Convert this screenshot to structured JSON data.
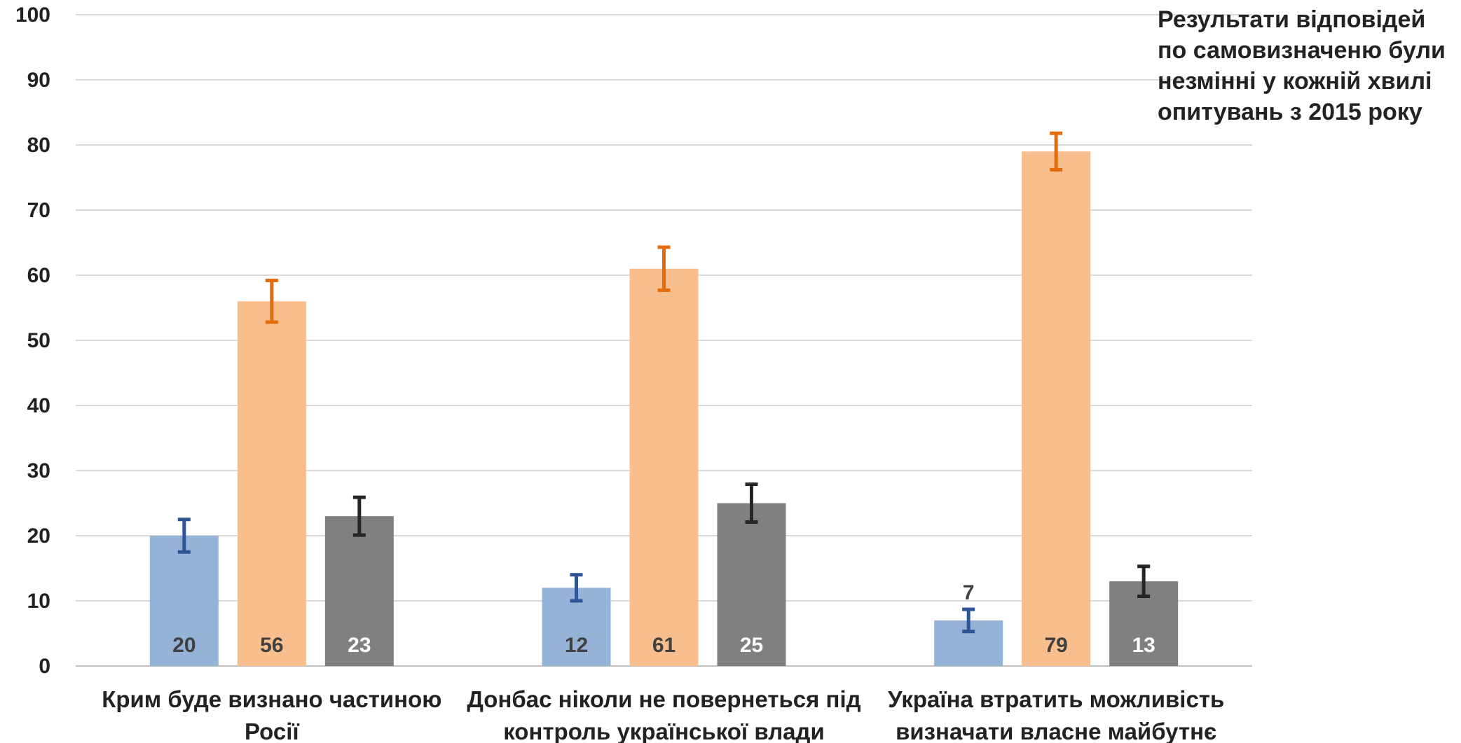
{
  "chart_data": {
    "type": "bar",
    "title": "",
    "xlabel": "",
    "ylabel": "",
    "ylim": [
      0,
      100
    ],
    "yticks": [
      0,
      10,
      20,
      30,
      40,
      50,
      60,
      70,
      80,
      90,
      100
    ],
    "grid": true,
    "categories": [
      [
        "Крим буде визнано частиною",
        "Росії"
      ],
      [
        "Донбас ніколи не повернеться під",
        "контроль української влади"
      ],
      [
        "Україна втратить можливість",
        "визначати власне майбутнє"
      ]
    ],
    "series": [
      {
        "values": [
          20,
          12,
          7
        ],
        "errors": [
          2.5,
          2,
          1.7
        ],
        "labels": [
          "20",
          "12",
          "7"
        ]
      },
      {
        "values": [
          56,
          61,
          79
        ],
        "errors": [
          3.2,
          3.3,
          2.8
        ],
        "labels": [
          "56",
          "61",
          "79"
        ]
      },
      {
        "values": [
          23,
          25,
          13
        ],
        "errors": [
          2.9,
          2.9,
          2.3
        ],
        "labels": [
          "23",
          "25",
          "13"
        ]
      }
    ],
    "colors": {
      "bars": [
        "#95b3d7",
        "#f9be8e",
        "#808080"
      ],
      "errorbars": [
        "#2f5597",
        "#e46c0a",
        "#262626"
      ],
      "labels_inside": [
        "#404040",
        "#404040",
        "#ffffff"
      ],
      "label_outside": "#404040",
      "grid": "#d9d9d9"
    }
  },
  "annotation": "Результати відповідей по самовизначеню були незмінні у кожній хвилі опитувань з 2015 року"
}
